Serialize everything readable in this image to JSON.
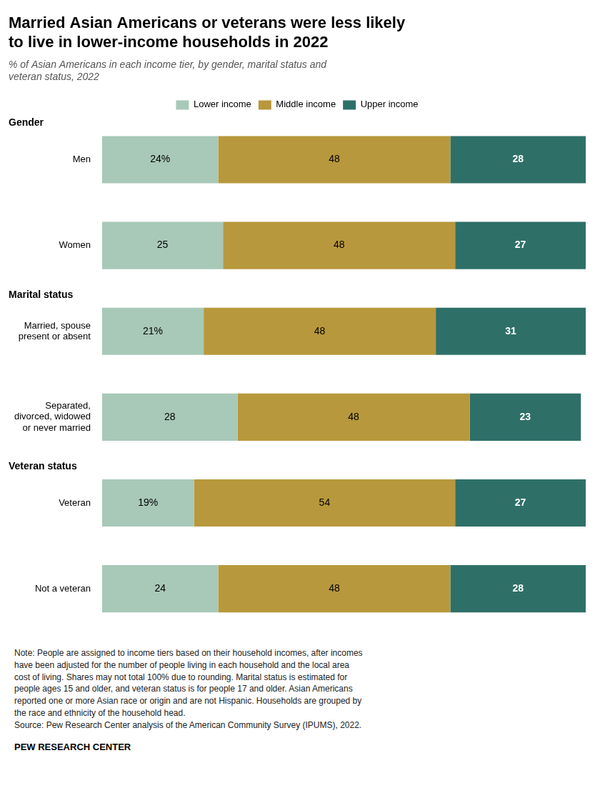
{
  "chart_data": {
    "type": "bar",
    "orientation": "horizontal",
    "stacked": true,
    "title": "Married Asian Americans or veterans were less likely\nto live in lower-income households in 2022",
    "subtitle": "% of Asian Americans in each income tier, by gender, marital status and\nveteran status, 2022",
    "categories": [
      "Men",
      "Women",
      "Married, spouse\npresent or absent",
      "Separated,\ndivorced, widowed\nor never married",
      "Veteran",
      "Not a veteran"
    ],
    "series": [
      {
        "name": "Lower income",
        "color": "#a8c8b8",
        "values": [
          24,
          25,
          21,
          28,
          19,
          24
        ],
        "value_labels": [
          "24%",
          "25",
          "21%",
          "28",
          "19%",
          "24"
        ]
      },
      {
        "name": "Middle income",
        "color": "#b8983c",
        "values": [
          48,
          48,
          48,
          48,
          54,
          48
        ]
      },
      {
        "name": "Upper income",
        "color": "#2e7068",
        "values": [
          28,
          27,
          31,
          23,
          27,
          28
        ]
      }
    ],
    "xlim": [
      0,
      100
    ],
    "data_labels": true,
    "tick_labels": "y",
    "grid": false,
    "legend": "top",
    "annotations": [
      {
        "text": "Gender",
        "category": "Men"
      },
      {
        "text": "Marital status",
        "category": "Married, spouse\npresent or absent"
      },
      {
        "text": "Veteran status",
        "category": "Veteran"
      }
    ],
    "note": "Note: People are assigned to income tiers based on their household incomes, after incomes\nhave been adjusted for the number of people living in each household and the local area\ncost of living. Shares may not total 100% due to rounding. Marital status is estimated for\npeople ages 15 and older, and veteran status is for people 17 and older. Asian Americans\nreported one or more Asian race or origin and are not Hispanic. Households are grouped by\nthe race and ethnicity of the household head.\nSource: Pew Research Center analysis of the American Community Survey (IPUMS), 2022.",
    "footer": "PEW RESEARCH CENTER"
  }
}
